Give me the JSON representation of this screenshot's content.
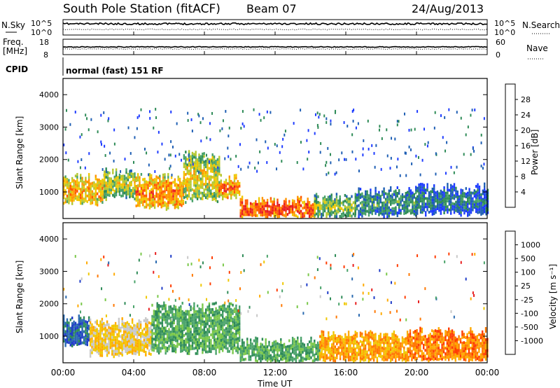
{
  "header": {
    "title": "South Pole Station (fitACF)",
    "beam": "Beam 07",
    "date": "24/Aug/2013"
  },
  "panels": {
    "nsky": {
      "left_label": "N.Sky",
      "left_top_tick": "10^5",
      "left_bottom_tick": "10^0",
      "right_label": "N.Search",
      "right_top_tick": "10^5",
      "right_bottom_tick": "10^0"
    },
    "freq": {
      "left_label_1": "Freq.",
      "left_label_2": "[MHz]",
      "left_top_tick": "18",
      "left_bottom_tick": "8",
      "right_label": "Nave",
      "right_top_tick": "60",
      "right_bottom_tick": "0"
    },
    "cpid": {
      "label": "CPID",
      "mode": "normal (fast) 151 RF"
    }
  },
  "axes": {
    "ylabel": "Slant Range [km]",
    "xlabel": "Time UT",
    "y_ticks": [
      "1000",
      "2000",
      "3000",
      "4000"
    ],
    "x_ticks": [
      "00:00",
      "04:00",
      "08:00",
      "12:00",
      "16:00",
      "20:00",
      "00:00"
    ]
  },
  "colorbars": {
    "power": {
      "label": "Power [dB]",
      "ticks": [
        "4",
        "8",
        "12",
        "16",
        "20",
        "24",
        "28"
      ],
      "colors": [
        "#1e3cff",
        "#1f5fb4",
        "#2e8b57",
        "#4aa36a",
        "#b4c832",
        "#f0c800",
        "#ff9600",
        "#ff5a00",
        "#e81e1e"
      ]
    },
    "velocity": {
      "label": "Velocity [m s⁻¹]",
      "ticks": [
        "1000",
        "500",
        "100",
        "25",
        "-25",
        "-100",
        "-500",
        "-1000"
      ],
      "colors": [
        "#1e3cc8",
        "#2a6ab0",
        "#2e8b57",
        "#4aa36a",
        "#7ac84a",
        "#c8c8c8",
        "#f0c800",
        "#ffaa00",
        "#ff7800",
        "#ff3c00",
        "#e81e1e"
      ]
    }
  },
  "chart_data": {
    "type": "heatmap",
    "x_range_hours": [
      0,
      24
    ],
    "y_range_km": [
      180,
      4500
    ],
    "power_blocks": [
      {
        "t0": 0.0,
        "t1": 2.3,
        "r0": 700,
        "r1": 1500,
        "level": 0.72
      },
      {
        "t0": 2.3,
        "t1": 4.1,
        "r0": 900,
        "r1": 1700,
        "level": 0.55
      },
      {
        "t0": 4.1,
        "t1": 6.8,
        "r0": 600,
        "r1": 1500,
        "level": 0.78
      },
      {
        "t0": 6.8,
        "t1": 8.8,
        "r0": 800,
        "r1": 2200,
        "level": 0.6
      },
      {
        "t0": 8.8,
        "t1": 10.0,
        "r0": 900,
        "r1": 1500,
        "level": 0.8
      },
      {
        "t0": 10.0,
        "t1": 14.2,
        "r0": 250,
        "r1": 800,
        "level": 0.9
      },
      {
        "t0": 14.2,
        "t1": 16.5,
        "r0": 300,
        "r1": 900,
        "level": 0.5
      },
      {
        "t0": 16.5,
        "t1": 20.0,
        "r0": 350,
        "r1": 1100,
        "level": 0.35
      },
      {
        "t0": 20.0,
        "t1": 24.0,
        "r0": 400,
        "r1": 1200,
        "level": 0.25
      }
    ],
    "velocity_blocks": [
      {
        "t0": 0.0,
        "t1": 1.5,
        "r0": 800,
        "r1": 1600,
        "class": 1
      },
      {
        "t0": 1.5,
        "t1": 5.0,
        "r0": 500,
        "r1": 1500,
        "class": 6
      },
      {
        "t0": 5.0,
        "t1": 10.0,
        "r0": 600,
        "r1": 2000,
        "class": 3
      },
      {
        "t0": 10.0,
        "t1": 14.5,
        "r0": 250,
        "r1": 900,
        "class": 3
      },
      {
        "t0": 14.5,
        "t1": 19.5,
        "r0": 300,
        "r1": 1100,
        "class": 7
      },
      {
        "t0": 19.5,
        "t1": 24.0,
        "r0": 300,
        "r1": 1200,
        "class": 8
      }
    ]
  }
}
